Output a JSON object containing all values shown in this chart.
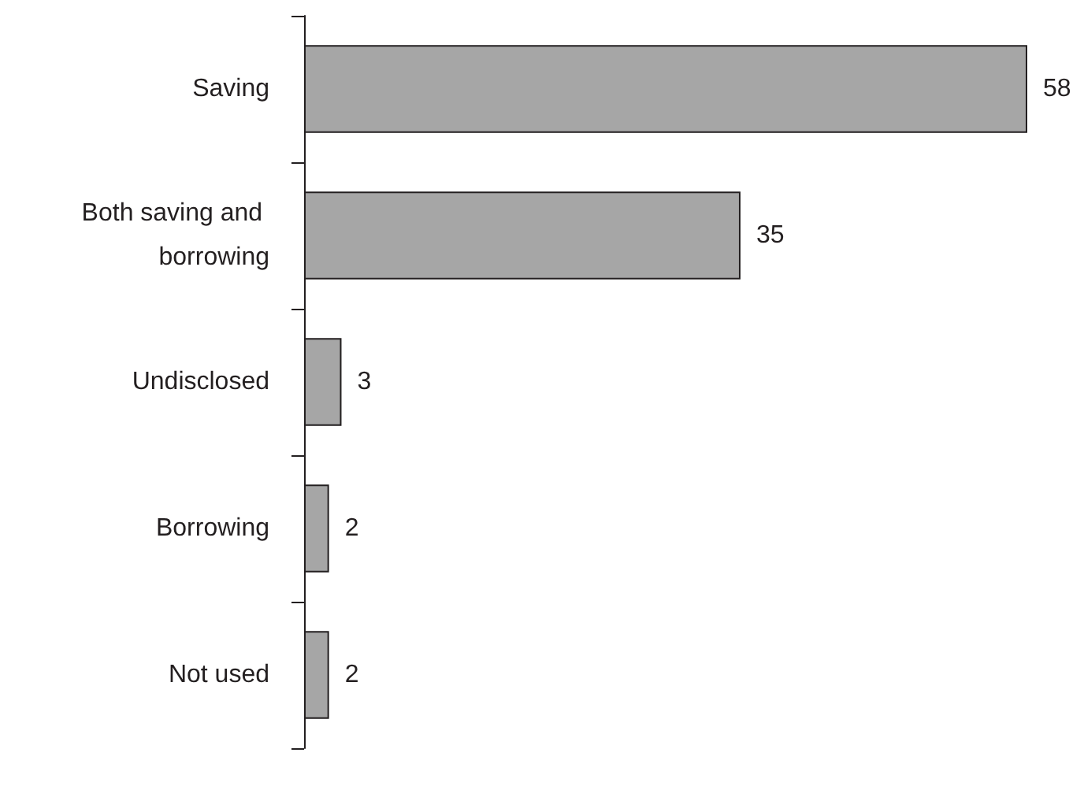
{
  "chart_data": {
    "type": "bar",
    "orientation": "horizontal",
    "tick_labels": "y",
    "data_labels": true,
    "color": "#a6a6a6",
    "categories": [
      "Saving",
      "Both saving and borrowing",
      "Undisclosed",
      "Borrowing",
      "Not used"
    ],
    "values": [
      58,
      35,
      3,
      2,
      2
    ]
  }
}
